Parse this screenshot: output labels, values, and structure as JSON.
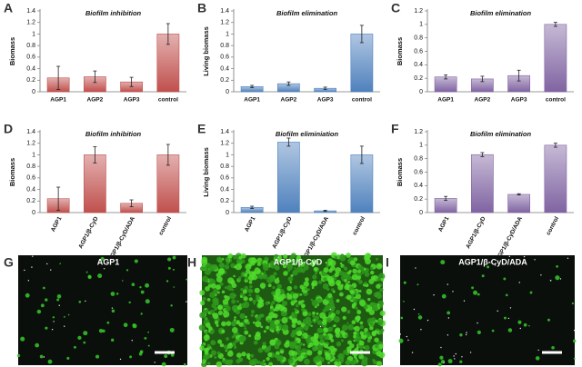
{
  "chart_data": [
    {
      "type": "bar",
      "panel": "A",
      "title": "Biofilm inhibition",
      "ylabel": "Biomass",
      "categories": [
        "AGP1",
        "AGP2",
        "AGP3",
        "control"
      ],
      "values": [
        0.24,
        0.26,
        0.17,
        1.0
      ],
      "errors": [
        0.2,
        0.1,
        0.08,
        0.18
      ],
      "color": "#c0504d",
      "ylim": [
        0,
        1.4
      ],
      "yticks": [
        0,
        0.2,
        0.4,
        0.6,
        0.8,
        1,
        1.2,
        1.4
      ]
    },
    {
      "type": "bar",
      "panel": "B",
      "title": "Biofilm elimination",
      "ylabel": "Living biomass",
      "categories": [
        "AGP1",
        "AGP2",
        "AGP3",
        "control"
      ],
      "values": [
        0.09,
        0.14,
        0.06,
        1.0
      ],
      "errors": [
        0.02,
        0.03,
        0.02,
        0.15
      ],
      "color": "#4f81bd",
      "ylim": [
        0,
        1.4
      ],
      "yticks": [
        0,
        0.2,
        0.4,
        0.6,
        0.8,
        1,
        1.2,
        1.4
      ]
    },
    {
      "type": "bar",
      "panel": "C",
      "title": "Biofilm elimination",
      "ylabel": "Biomass",
      "categories": [
        "AGP1",
        "AGP2",
        "AGP3",
        "control"
      ],
      "values": [
        0.22,
        0.19,
        0.24,
        1.0
      ],
      "errors": [
        0.03,
        0.04,
        0.08,
        0.03
      ],
      "color": "#8064a2",
      "ylim": [
        0,
        1.2
      ],
      "yticks": [
        0,
        0.2,
        0.4,
        0.6,
        0.8,
        1,
        1.2
      ]
    },
    {
      "type": "bar",
      "panel": "D",
      "title": "Biofilm inhibition",
      "ylabel": "Biomass",
      "categories": [
        "AGP1",
        "AGP1/β-CyD",
        "AGP1/β-CyD/ADA",
        "control"
      ],
      "values": [
        0.24,
        1.0,
        0.16,
        1.0
      ],
      "errors": [
        0.2,
        0.14,
        0.06,
        0.18
      ],
      "color": "#c0504d",
      "ylim": [
        0,
        1.4
      ],
      "yticks": [
        0,
        0.2,
        0.4,
        0.6,
        0.8,
        1,
        1.2,
        1.4
      ]
    },
    {
      "type": "bar",
      "panel": "E",
      "title": "Biofilm eliminiation",
      "ylabel": "Living biomass",
      "categories": [
        "AGP1",
        "AGP1/β-CyD",
        "AGP1/β-CyD/ADA",
        "control"
      ],
      "values": [
        0.09,
        1.22,
        0.03,
        1.0
      ],
      "errors": [
        0.02,
        0.07,
        0.01,
        0.15
      ],
      "color": "#4f81bd",
      "ylim": [
        0,
        1.4
      ],
      "yticks": [
        0,
        0.2,
        0.4,
        0.6,
        0.8,
        1,
        1.2,
        1.4
      ]
    },
    {
      "type": "bar",
      "panel": "F",
      "title": "Biofilm elimination",
      "ylabel": "Biomass",
      "categories": [
        "AGP1",
        "AGP1/β-CyD",
        "AGP1/β-CyD/ADA",
        "control"
      ],
      "values": [
        0.21,
        0.86,
        0.27,
        1.0
      ],
      "errors": [
        0.03,
        0.03,
        0.01,
        0.03
      ],
      "color": "#8064a2",
      "ylim": [
        0,
        1.2
      ],
      "yticks": [
        0,
        0.2,
        0.4,
        0.6,
        0.8,
        1,
        1.2
      ]
    }
  ],
  "images": [
    {
      "panel": "G",
      "label": "AGP1"
    },
    {
      "panel": "H",
      "label": "AGP1/β-CyD"
    },
    {
      "panel": "I",
      "label": "AGP1/β-CyD/ADA"
    }
  ]
}
